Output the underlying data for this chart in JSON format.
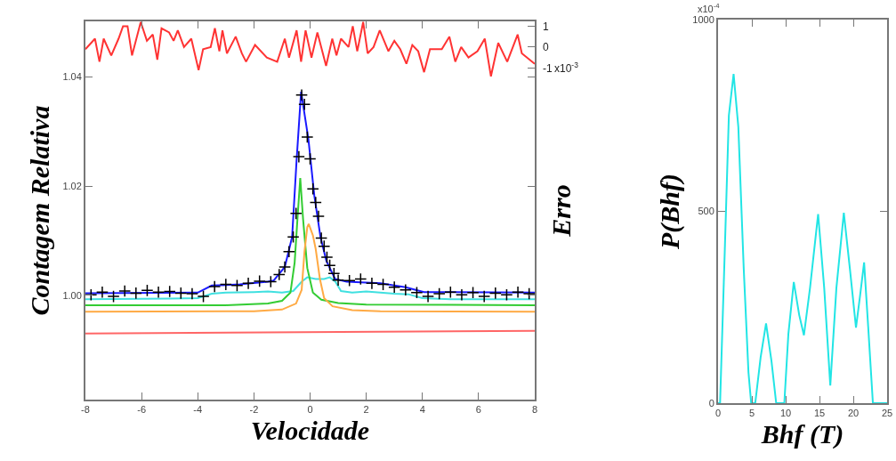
{
  "chart_data": [
    {
      "type": "line",
      "xlabel": "Velocidade",
      "ylabel": "Contagem Relativa",
      "y2label": "Erro",
      "xlim": [
        -8,
        8
      ],
      "xticks": [
        -8,
        -6,
        -4,
        -2,
        0,
        2,
        4,
        6,
        8
      ],
      "ylim": [
        0.9809,
        1.0502
      ],
      "yticks": [
        {
          "value": 1,
          "label": "1.00"
        },
        {
          "value": 1.02,
          "label": "1.02"
        },
        {
          "value": 1.04,
          "label": "1.04"
        }
      ],
      "y2lim": [
        -16.85,
        1.23
      ],
      "y2ticks": [
        1,
        0,
        -1
      ],
      "annotations": [
        "x10$^{-3}$"
      ],
      "series": [
        {
          "type": "scatter",
          "marker": "cross",
          "color": "#000000",
          "x": [
            -7.8,
            -7.4,
            -7.0,
            -6.6,
            -6.2,
            -5.8,
            -5.4,
            -5.0,
            -4.6,
            -4.2,
            -3.8,
            -3.4,
            -3.0,
            -2.6,
            -2.2,
            -1.8,
            -1.4,
            -1.1,
            -0.9,
            -0.75,
            -0.6,
            -0.5,
            -0.4,
            -0.3,
            -0.2,
            -0.1,
            0.0,
            0.1,
            0.2,
            0.3,
            0.4,
            0.5,
            0.6,
            0.7,
            0.85,
            1.0,
            1.4,
            1.8,
            2.2,
            2.6,
            3.0,
            3.4,
            3.8,
            4.2,
            4.6,
            5.0,
            5.4,
            5.8,
            6.2,
            6.6,
            7.0,
            7.4,
            7.8
          ],
          "values": [
            1.0001,
            1.0006,
            0.9998,
            1.0008,
            1.0004,
            1.0009,
            1.0006,
            1.0007,
            1.0004,
            1.0003,
            0.9998,
            1.0016,
            1.002,
            1.0018,
            1.0022,
            1.0026,
            1.0025,
            1.0038,
            1.0052,
            1.008,
            1.0107,
            1.015,
            1.0254,
            1.0367,
            1.035,
            1.029,
            1.025,
            1.0195,
            1.017,
            1.0145,
            1.0105,
            1.009,
            1.007,
            1.0055,
            1.004,
            1.0028,
            1.0027,
            1.003,
            1.0022,
            1.002,
            1.0015,
            1.001,
            1.0005,
            0.9998,
            1.0003,
            1.0006,
            1.0001,
            1.0005,
            0.9998,
            1.0004,
            1.0001,
            1.0006,
            1.0003
          ]
        },
        {
          "color": "#1a1aff",
          "x": [
            -8,
            -4,
            -3.5,
            -2.5,
            -1.5,
            -1.3,
            -0.9,
            -0.64,
            -0.48,
            -0.32,
            -0.06,
            0.15,
            0.37,
            0.58,
            0.89,
            1.3,
            2.5,
            3.4,
            4.06,
            8
          ],
          "values": [
            1.0004,
            1.0005,
            1.0018,
            1.002,
            1.0025,
            1.0027,
            1.0052,
            1.0107,
            1.0248,
            1.0373,
            1.0286,
            1.0183,
            1.0107,
            1.0063,
            1.003,
            1.0025,
            1.0022,
            1.0015,
            1.0006,
            1.0005
          ]
        },
        {
          "color": "#40e0e0",
          "x": [
            -8,
            -5,
            -4,
            -3.5,
            -3,
            -2,
            -1.5,
            -1,
            -0.6,
            -0.3,
            -0.1,
            0.2,
            0.5,
            0.7,
            0.9,
            1.1,
            1.5,
            2,
            3,
            3.5,
            4,
            5,
            8
          ],
          "values": [
            0.9993,
            0.9994,
            0.9995,
            1.0003,
            1.0005,
            1.0006,
            1.0007,
            1.0005,
            1.0008,
            1.0025,
            1.0033,
            1.003,
            1.003,
            1.0033,
            1.0025,
            1.0008,
            1.0005,
            1.0007,
            1.0003,
            1.0002,
            0.9995,
            0.9993,
            0.9993
          ]
        },
        {
          "color": "#33cc33",
          "x": [
            -8,
            -3,
            -1.5,
            -1,
            -0.7,
            -0.55,
            -0.45,
            -0.35,
            -0.25,
            -0.1,
            0.1,
            0.4,
            1,
            2,
            8
          ],
          "values": [
            0.9982,
            0.9982,
            0.9985,
            0.999,
            1.0005,
            1.006,
            1.014,
            1.0215,
            1.014,
            1.005,
            1.0005,
            0.9992,
            0.9986,
            0.9983,
            0.9982
          ]
        },
        {
          "color": "#ffaa44",
          "x": [
            -8,
            -2,
            -1,
            -0.5,
            -0.3,
            -0.2,
            -0.1,
            -0.05,
            0.1,
            0.2,
            0.35,
            0.5,
            0.8,
            1.5,
            2.5,
            8
          ],
          "values": [
            0.997,
            0.9971,
            0.9974,
            0.9985,
            1.001,
            1.008,
            1.0125,
            1.0131,
            1.011,
            1.0085,
            1.003,
            0.9995,
            0.998,
            0.9973,
            0.9971,
            0.997
          ]
        },
        {
          "color": "#ff6666",
          "x": [
            -8,
            8
          ],
          "values": [
            0.993,
            0.9935
          ]
        },
        {
          "color": "#ff3333",
          "axis": "y2",
          "x": [
            -8,
            -7.66,
            -7.5,
            -7.35,
            -7.08,
            -6.82,
            -6.66,
            -6.5,
            -6.34,
            -6.03,
            -5.81,
            -5.6,
            -5.44,
            -5.29,
            -5.02,
            -4.86,
            -4.71,
            -4.49,
            -4.23,
            -3.97,
            -3.81,
            -3.54,
            -3.39,
            -3.23,
            -3.12,
            -2.96,
            -2.65,
            -2.43,
            -2.28,
            -1.96,
            -1.54,
            -1.17,
            -0.9,
            -0.75,
            -0.48,
            -0.32,
            -0.16,
            0.05,
            0.26,
            0.57,
            0.79,
            0.94,
            1.1,
            1.37,
            1.52,
            1.68,
            1.89,
            2.05,
            2.26,
            2.48,
            2.79,
            3.0,
            3.21,
            3.43,
            3.64,
            3.85,
            4.06,
            4.27,
            4.69,
            4.96,
            5.17,
            5.38,
            5.64,
            5.96,
            6.22,
            6.44,
            6.7,
            7.02,
            7.39,
            7.54,
            8
          ],
          "values": [
            -0.1,
            0.4,
            -0.7,
            0.4,
            -0.4,
            0.4,
            1.0,
            1.0,
            -0.4,
            1.2,
            0.3,
            0.6,
            -0.6,
            0.9,
            0.7,
            0.3,
            0.8,
            0.0,
            0.4,
            -1.1,
            -0.1,
            0.0,
            0.9,
            -0.2,
            0.8,
            -0.3,
            0.5,
            -0.3,
            -0.7,
            0.1,
            -0.5,
            -0.7,
            0.4,
            -0.5,
            0.8,
            -0.7,
            0.8,
            -0.5,
            0.7,
            -0.9,
            0.4,
            -0.4,
            0.4,
            0.0,
            1.0,
            -0.2,
            1.2,
            -0.3,
            0.0,
            0.8,
            -0.2,
            0.3,
            -0.1,
            -0.8,
            0.1,
            -0.2,
            -1.2,
            -0.1,
            -0.1,
            0.5,
            -0.7,
            0.0,
            -0.5,
            -0.2,
            0.4,
            -1.4,
            0.2,
            -0.7,
            0.6,
            -0.3,
            -0.8
          ]
        }
      ]
    },
    {
      "type": "line",
      "xlabel": "Bhf (T)",
      "ylabel": "P(Bhf)",
      "xlim": [
        0,
        25
      ],
      "xticks": [
        0,
        5,
        10,
        15,
        20,
        25
      ],
      "ylim": [
        0,
        1000
      ],
      "yticks": [
        0,
        500,
        1000
      ],
      "annotations": [
        "x10$^{-4}$"
      ],
      "series": [
        {
          "color": "#22e5e5",
          "x": [
            0,
            0.3,
            1.0,
            1.6,
            2.3,
            3.0,
            3.8,
            4.5,
            4.9,
            5.5,
            6.3,
            7.1,
            7.9,
            8.6,
            9.8,
            10.4,
            11.2,
            12.0,
            12.7,
            13.6,
            14.8,
            15.7,
            16.6,
            17.5,
            18.6,
            19.5,
            20.4,
            21.0,
            21.6,
            22.2,
            22.9,
            25
          ],
          "values": [
            0,
            0,
            400,
            750,
            858,
            720,
            350,
            80,
            0,
            0,
            120,
            208,
            110,
            0,
            0,
            180,
            316,
            230,
            177,
            300,
            493,
            300,
            46,
            300,
            496,
            350,
            197,
            280,
            367,
            200,
            0,
            0
          ]
        }
      ]
    }
  ]
}
